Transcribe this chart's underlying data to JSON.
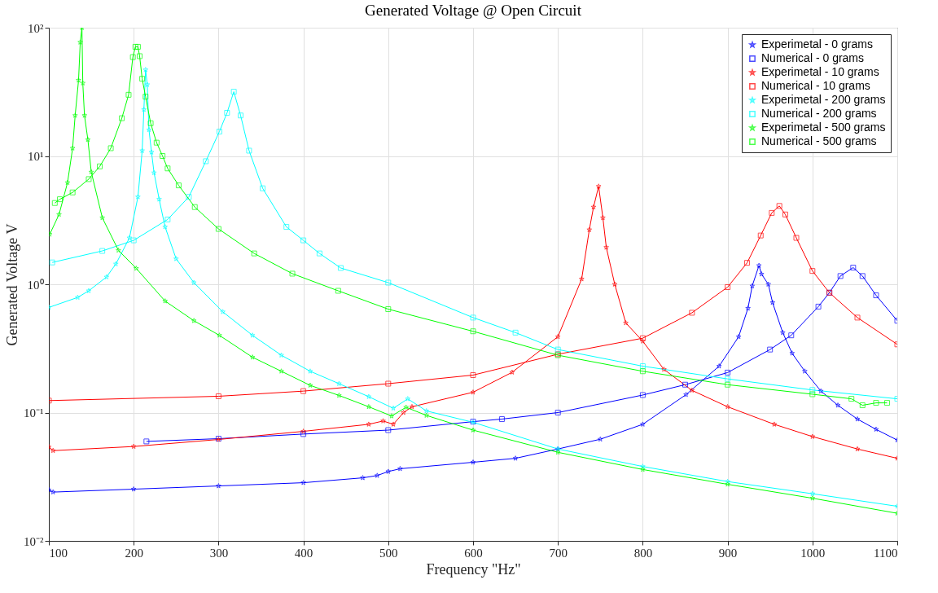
{
  "chart_data": {
    "type": "line",
    "title": "Generated Voltage @ Open Circuit",
    "xlabel": "Frequency \"Hz\"",
    "ylabel": "Generated Voltage V",
    "log": "y",
    "grid": true,
    "legend": "top right",
    "xlim": [
      100,
      1100
    ],
    "xticks": [
      100,
      200,
      300,
      400,
      500,
      600,
      700,
      800,
      900,
      1000,
      1100
    ],
    "ylim": [
      0.01,
      100
    ],
    "yticks": [
      {
        "value": 0.01,
        "label": "10⁻²"
      },
      {
        "value": 0.1,
        "label": "10⁻¹"
      },
      {
        "value": 1,
        "label": "10⁰"
      },
      {
        "value": 10,
        "label": "10¹"
      },
      {
        "value": 100,
        "label": "10²"
      }
    ],
    "series": [
      {
        "name": "Experimetal - 0 grams",
        "color": "#0000ff",
        "marker": "star",
        "x": [
          100,
          105,
          200,
          300,
          400,
          470,
          487,
          500,
          514,
          600,
          650,
          700,
          750,
          800,
          851,
          890,
          913,
          924,
          929,
          937,
          940,
          948,
          953,
          965,
          976,
          991,
          1010,
          1030,
          1053,
          1075,
          1100
        ],
        "values": [
          0.025,
          0.024,
          0.0253,
          0.0268,
          0.0284,
          0.031,
          0.0323,
          0.0347,
          0.0365,
          0.041,
          0.044,
          0.052,
          0.062,
          0.081,
          0.138,
          0.23,
          0.39,
          0.65,
          0.97,
          1.4,
          1.2,
          1.0,
          0.72,
          0.42,
          0.29,
          0.21,
          0.147,
          0.114,
          0.089,
          0.074,
          0.061
        ]
      },
      {
        "name": "Numerical - 0 grams",
        "color": "#0000ff",
        "marker": "square",
        "x": [
          215,
          300,
          400,
          500,
          600,
          634,
          700,
          800,
          850,
          900,
          950,
          975,
          1007,
          1020,
          1033,
          1048,
          1059,
          1075,
          1100
        ],
        "values": [
          0.0596,
          0.0626,
          0.068,
          0.073,
          0.085,
          0.089,
          0.1,
          0.137,
          0.165,
          0.205,
          0.31,
          0.4,
          0.67,
          0.86,
          1.16,
          1.35,
          1.16,
          0.82,
          0.52
        ]
      },
      {
        "name": "Experimetal - 10 grams",
        "color": "#ff0000",
        "marker": "star",
        "x": [
          100,
          105,
          200,
          300,
          400,
          477,
          494,
          506,
          518,
          528,
          600,
          646,
          700,
          728,
          737,
          742,
          748,
          753,
          757,
          767,
          780,
          800,
          825,
          858,
          900,
          955,
          1000,
          1053,
          1100
        ],
        "values": [
          0.054,
          0.0505,
          0.0544,
          0.0617,
          0.0714,
          0.081,
          0.086,
          0.081,
          0.1,
          0.111,
          0.144,
          0.206,
          0.39,
          1.1,
          2.66,
          4.0,
          5.8,
          3.3,
          1.94,
          1.0,
          0.5,
          0.36,
          0.217,
          0.149,
          0.111,
          0.081,
          0.065,
          0.052,
          0.044
        ]
      },
      {
        "name": "Numerical - 10 grams",
        "color": "#ff0000",
        "marker": "square",
        "x": [
          100,
          300,
          400,
          500,
          600,
          700,
          800,
          858,
          900,
          923,
          939,
          952,
          961,
          968,
          981,
          1000,
          1020,
          1053,
          1100
        ],
        "values": [
          0.124,
          0.134,
          0.147,
          0.168,
          0.196,
          0.285,
          0.38,
          0.6,
          0.95,
          1.47,
          2.4,
          3.6,
          4.08,
          3.5,
          2.3,
          1.27,
          0.86,
          0.55,
          0.34
        ]
      },
      {
        "name": "Experimetal - 200 grams",
        "color": "#00ffff",
        "marker": "star",
        "x": [
          100,
          134,
          147,
          168,
          179,
          195,
          205,
          210,
          212,
          214,
          216,
          218,
          221,
          224,
          230,
          237,
          250,
          271,
          305,
          340,
          374,
          408,
          442,
          477,
          506,
          523,
          545,
          600,
          700,
          800,
          900,
          1000,
          1100
        ],
        "values": [
          0.66,
          0.79,
          0.89,
          1.14,
          1.44,
          2.3,
          4.8,
          11,
          23,
          47,
          36,
          16,
          10.7,
          7.4,
          4.6,
          2.8,
          1.58,
          1.03,
          0.61,
          0.4,
          0.28,
          0.21,
          0.168,
          0.133,
          0.108,
          0.128,
          0.103,
          0.084,
          0.052,
          0.038,
          0.029,
          0.0233,
          0.0186
        ]
      },
      {
        "name": "Numerical - 200 grams",
        "color": "#00ffff",
        "marker": "square",
        "x": [
          104,
          163,
          200,
          240,
          265,
          285,
          301,
          310,
          318,
          326,
          336,
          352,
          380,
          400,
          419,
          444,
          500,
          600,
          650,
          700,
          800,
          900,
          1000,
          1100
        ],
        "values": [
          1.48,
          1.82,
          2.2,
          3.2,
          4.8,
          9.1,
          15.5,
          21.7,
          31.7,
          20.7,
          11,
          5.6,
          2.8,
          2.2,
          1.74,
          1.34,
          1.03,
          0.55,
          0.42,
          0.31,
          0.23,
          0.183,
          0.15,
          0.128
        ]
      },
      {
        "name": "Experimetal - 500 grams",
        "color": "#00ff00",
        "marker": "star",
        "x": [
          101,
          112,
          122,
          128,
          131,
          135,
          137,
          139,
          140,
          142,
          146,
          150,
          163,
          182,
          203,
          237,
          271,
          301,
          340,
          374,
          408,
          442,
          477,
          504,
          521,
          545,
          600,
          700,
          800,
          900,
          1000,
          1100
        ],
        "values": [
          2.45,
          3.5,
          6.2,
          11.5,
          20.7,
          39,
          77,
          100,
          37,
          20.7,
          13.4,
          7.5,
          3.3,
          1.84,
          1.33,
          0.74,
          0.52,
          0.4,
          0.27,
          0.21,
          0.163,
          0.136,
          0.111,
          0.094,
          0.11,
          0.095,
          0.073,
          0.049,
          0.036,
          0.0276,
          0.0215,
          0.0164
        ]
      },
      {
        "name": "Numerical - 500 grams",
        "color": "#00ff00",
        "marker": "square",
        "x": [
          107,
          113,
          128,
          147,
          160,
          173,
          186,
          194,
          199,
          202,
          205,
          207,
          210,
          214,
          220,
          227,
          234,
          240,
          253,
          272,
          300,
          342,
          387,
          441,
          500,
          600,
          700,
          800,
          900,
          1000,
          1046,
          1059,
          1075,
          1088
        ],
        "values": [
          4.3,
          4.6,
          5.2,
          6.6,
          8.3,
          11.5,
          19.7,
          30,
          59,
          71,
          71,
          60,
          40,
          29,
          18,
          12.7,
          10,
          8,
          5.9,
          4.0,
          2.7,
          1.74,
          1.21,
          0.89,
          0.64,
          0.43,
          0.28,
          0.21,
          0.165,
          0.139,
          0.128,
          0.114,
          0.119,
          0.119
        ]
      }
    ]
  }
}
